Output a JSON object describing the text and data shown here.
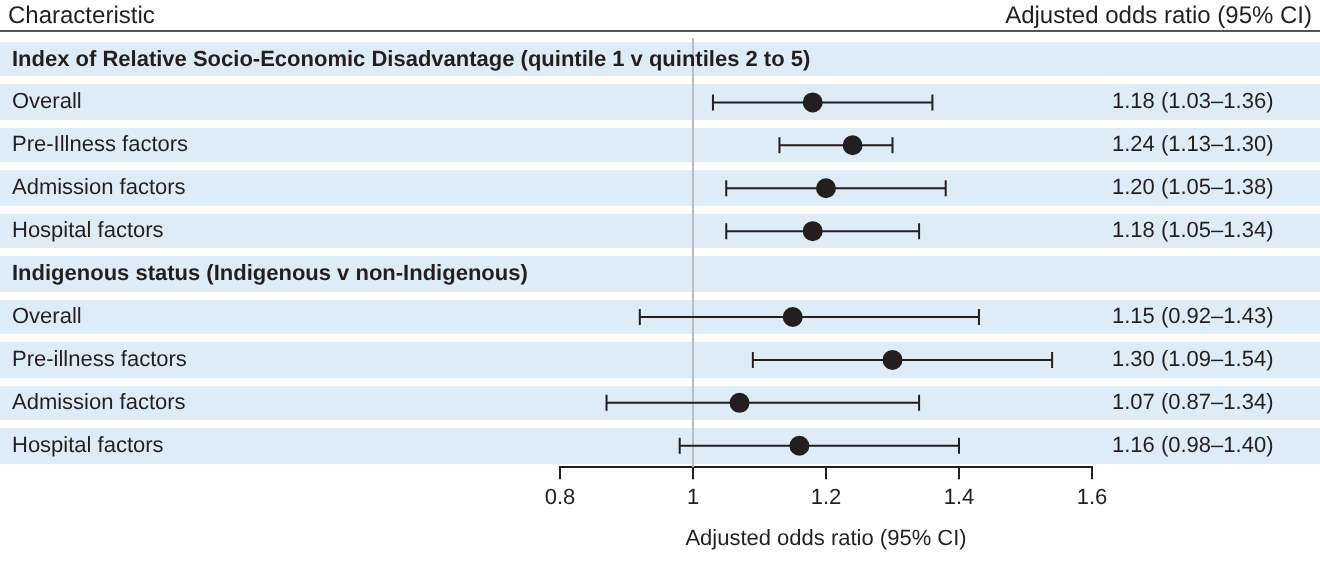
{
  "chart_data": {
    "type": "scatter",
    "orientation": "horizontal",
    "categories": [
      "Index of Relative Socio-Economic Disadvantage (quintile 1 v quintiles 2 to 5)",
      "Overall",
      "Pre-Illness factors",
      "Admission factors",
      "Hospital factors",
      "Indigenous status (Indigenous v non-Indigenous)",
      "Overall",
      "Pre-illness factors",
      "Admission factors",
      "Hospital factors"
    ],
    "values": [
      null,
      1.18,
      1.24,
      1.2,
      1.18,
      null,
      1.15,
      1.3,
      1.07,
      1.16
    ],
    "errors": [
      null,
      [
        1.03,
        1.36
      ],
      [
        1.13,
        1.3
      ],
      [
        1.05,
        1.38
      ],
      [
        1.05,
        1.34
      ],
      null,
      [
        0.92,
        1.43
      ],
      [
        1.09,
        1.54
      ],
      [
        0.87,
        1.34
      ],
      [
        0.98,
        1.4
      ]
    ],
    "value_labels": [
      null,
      "1.18 (1.03–1.36)",
      "1.24 (1.13–1.30)",
      "1.20 (1.05–1.38)",
      "1.18 (1.05–1.34)",
      null,
      "1.15 (0.92–1.43)",
      "1.30 (1.09–1.54)",
      "1.07 (0.87–1.34)",
      "1.16 (0.98–1.40)"
    ],
    "color": "#231f20",
    "xlabel": "Adjusted odds ratio (95% CI)",
    "xlim": [
      0.8,
      1.6
    ],
    "xticks": [
      0.8,
      1,
      1.2,
      1.4,
      1.6
    ],
    "ref_lines": [
      {
        "axis": "x",
        "value": 1,
        "color": "#b8bcc0"
      }
    ],
    "annotations": [
      "Characteristic",
      "Adjusted odds ratio (95% CI)"
    ],
    "marker": "circle",
    "grid": false,
    "legend": false
  }
}
